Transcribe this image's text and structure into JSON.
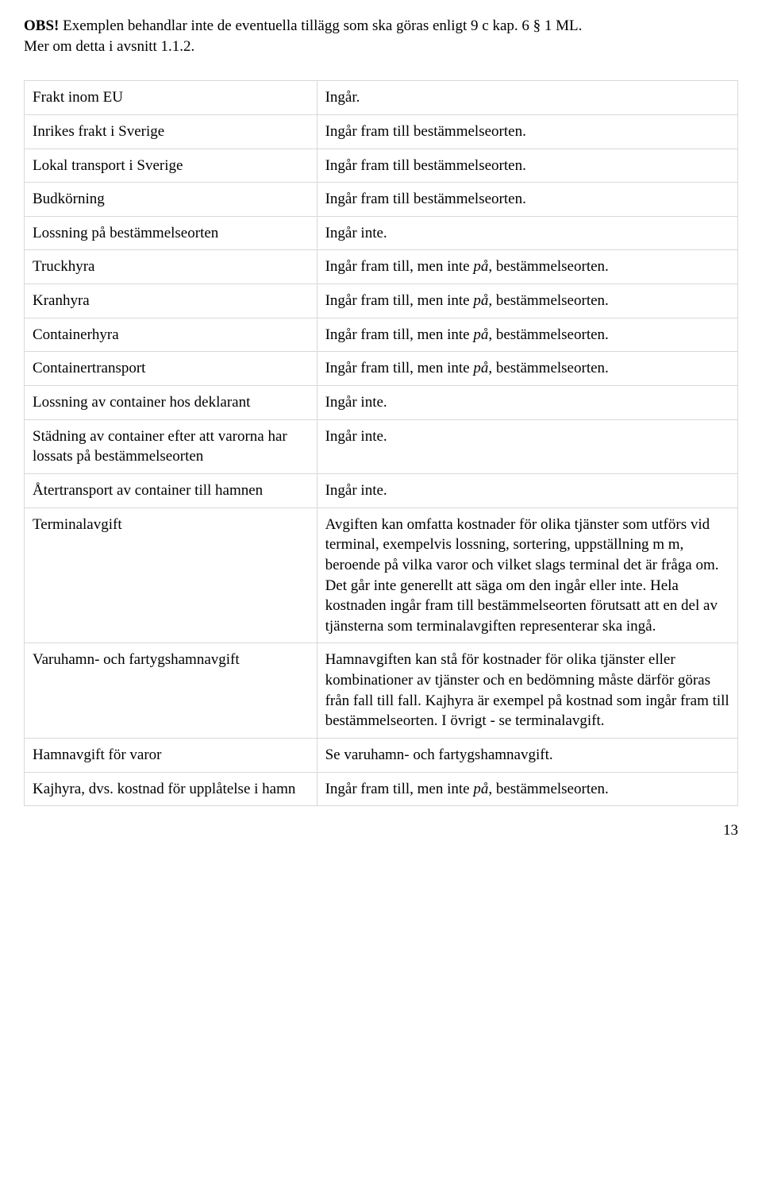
{
  "notice": {
    "bold_prefix": "OBS!",
    "line1_rest": " Exemplen behandlar inte de eventuella tillägg som ska göras enligt 9 c kap. 6 § 1 ML.",
    "line2": "Mer om detta i avsnitt 1.1.2."
  },
  "rows": [
    {
      "label": "Frakt inom EU",
      "value": "Ingår."
    },
    {
      "label": "Inrikes frakt i Sverige",
      "value": "Ingår fram till bestämmelseorten."
    },
    {
      "label": "Lokal transport i Sverige",
      "value": "Ingår fram till bestämmelseorten."
    },
    {
      "label": "Budkörning",
      "value": "Ingår fram till bestämmelseorten."
    },
    {
      "label": "Lossning på bestämmelseorten",
      "value": "Ingår inte."
    },
    {
      "label": "Truckhyra",
      "value_pre": "Ingår fram till, men inte ",
      "value_em": "på",
      "value_post": ", bestämmelseorten."
    },
    {
      "label": "Kranhyra",
      "value_pre": "Ingår fram till, men inte ",
      "value_em": "på",
      "value_post": ", bestämmelseorten."
    },
    {
      "label": "Containerhyra",
      "value_pre": "Ingår fram till, men inte ",
      "value_em": "på",
      "value_post": ", bestämmelseorten."
    },
    {
      "label": "Containertransport",
      "value_pre": "Ingår fram till, men inte ",
      "value_em": "på",
      "value_post": ", bestämmelseorten."
    },
    {
      "label": "Lossning av container hos deklarant",
      "value": "Ingår inte."
    },
    {
      "label": "Städning av container efter att varorna har lossats på bestämmelseorten",
      "value": "Ingår inte."
    },
    {
      "label": "Återtransport av container till hamnen",
      "value": "Ingår inte."
    },
    {
      "label": "Terminalavgift",
      "value": "Avgiften kan omfatta kostnader för olika tjänster som utförs vid terminal, exempelvis lossning, sortering, uppställning m m, beroende på vilka varor och vilket slags terminal det är fråga om. Det går inte generellt att säga om den ingår eller inte. Hela kostnaden ingår fram till bestämmelseorten förutsatt att en del av tjänsterna som terminalavgiften representerar ska ingå."
    },
    {
      "label": "Varuhamn- och fartygshamnavgift",
      "value": "Hamnavgiften kan stå för kostnader för olika tjänster eller kombinationer av tjänster och en bedömning måste därför göras från fall till fall. Kajhyra är exempel på kostnad som ingår fram till bestämmelseorten. I övrigt - se terminalavgift."
    },
    {
      "label": "Hamnavgift för varor",
      "value": "Se varuhamn- och fartygshamnavgift."
    },
    {
      "label": "Kajhyra, dvs. kostnad för upplåtelse i hamn",
      "value_pre": "Ingår fram till, men inte ",
      "value_em": "på",
      "value_post": ", bestämmelseorten."
    }
  ],
  "page_number": "13",
  "style": {
    "font_family": "Times New Roman",
    "font_size_pt": 14,
    "text_color": "#000000",
    "background_color": "#ffffff",
    "border_color": "#d9d9d9",
    "col_left_width_pct": 41,
    "col_right_width_pct": 59
  }
}
